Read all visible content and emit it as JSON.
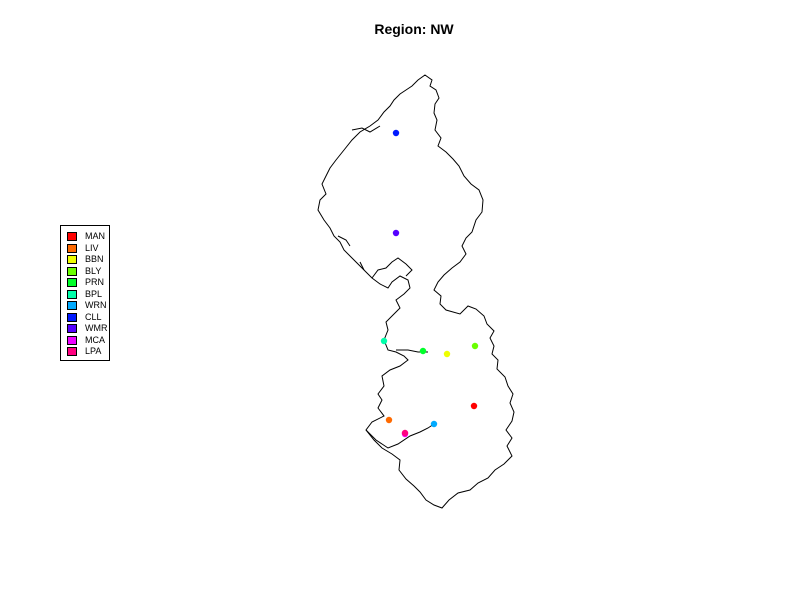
{
  "title": "Region: NW",
  "stations": [
    {
      "code": "MAN",
      "color": "#FF0000"
    },
    {
      "code": "LIV",
      "color": "#FF6A00"
    },
    {
      "code": "BBN",
      "color": "#EEFF00"
    },
    {
      "code": "BLY",
      "color": "#6AFF00"
    },
    {
      "code": "PRN",
      "color": "#00FF2A"
    },
    {
      "code": "BPL",
      "color": "#00FFAA"
    },
    {
      "code": "WRN",
      "color": "#00AAFF"
    },
    {
      "code": "CLL",
      "color": "#0019FF"
    },
    {
      "code": "WMR",
      "color": "#5500FF"
    },
    {
      "code": "MCA",
      "color": "#EE00FF"
    },
    {
      "code": "LPA",
      "color": "#FF0080"
    }
  ]
}
